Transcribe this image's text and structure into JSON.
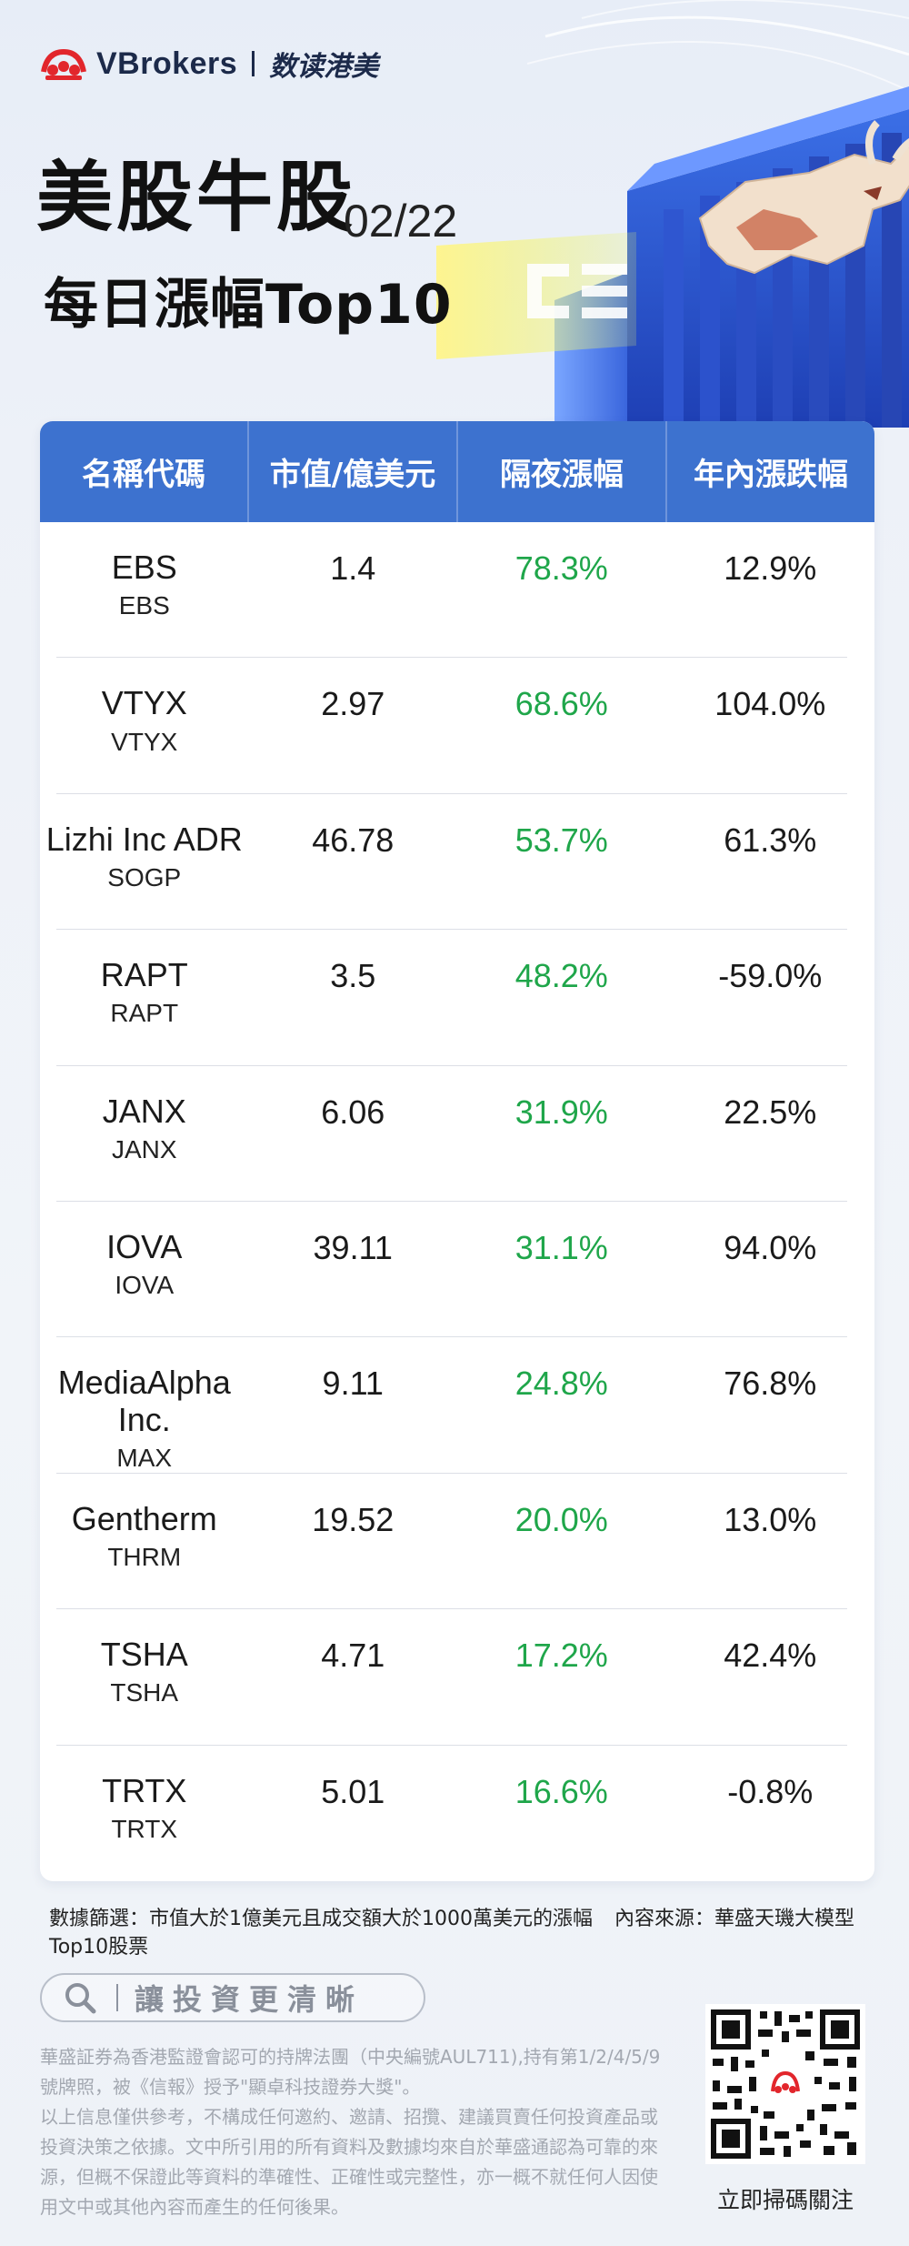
{
  "brand": {
    "name": "VBrokers",
    "subtitle": "数读港美",
    "logo_icon": "vbrokers-logo-icon"
  },
  "header": {
    "title": "美股牛股",
    "date": "02/22",
    "subtitle": "每日漲幅Top10"
  },
  "table": {
    "columns": [
      "名稱代碼",
      "市值/億美元",
      "隔夜漲幅",
      "年內漲跌幅"
    ],
    "rows": [
      {
        "name": "EBS",
        "code": "EBS",
        "market_cap": "1.4",
        "overnight": "78.3%",
        "ytd": "12.9%"
      },
      {
        "name": "VTYX",
        "code": "VTYX",
        "market_cap": "2.97",
        "overnight": "68.6%",
        "ytd": "104.0%"
      },
      {
        "name": "Lizhi Inc ADR",
        "code": "SOGP",
        "market_cap": "46.78",
        "overnight": "53.7%",
        "ytd": "61.3%"
      },
      {
        "name": "RAPT",
        "code": "RAPT",
        "market_cap": "3.5",
        "overnight": "48.2%",
        "ytd": "-59.0%"
      },
      {
        "name": "JANX",
        "code": "JANX",
        "market_cap": "6.06",
        "overnight": "31.9%",
        "ytd": "22.5%"
      },
      {
        "name": "IOVA",
        "code": "IOVA",
        "market_cap": "39.11",
        "overnight": "31.1%",
        "ytd": "94.0%"
      },
      {
        "name": "MediaAlpha Inc.",
        "code": "MAX",
        "market_cap": "9.11",
        "overnight": "24.8%",
        "ytd": "76.8%"
      },
      {
        "name": "Gentherm",
        "code": "THRM",
        "market_cap": "19.52",
        "overnight": "20.0%",
        "ytd": "13.0%"
      },
      {
        "name": "TSHA",
        "code": "TSHA",
        "market_cap": "4.71",
        "overnight": "17.2%",
        "ytd": "42.4%"
      },
      {
        "name": "TRTX",
        "code": "TRTX",
        "market_cap": "5.01",
        "overnight": "16.6%",
        "ytd": "-0.8%"
      }
    ]
  },
  "footer": {
    "filter_note": "數據篩選：市值大於1億美元且成交額大於1000萬美元的漲幅Top10股票",
    "source_note": "內容來源：華盛天璣大模型",
    "search_text": "讓投資更清晰",
    "disclaimer_1": "華盛証券為香港監證會認可的持牌法團（中央編號AUL711),持有第1/2/4/5/9號牌照，被《信報》授予\"顯卓科技證券大獎\"。",
    "disclaimer_2": "以上信息僅供參考，不構成任何邀約、邀請、招攬、建議買賣任何投資產品或投資決策之依據。文中所引用的所有資料及數據均來自於華盛通認為可靠的來源，但概不保證此等資料的準確性、正確性或完整性，亦一概不就任何人因使用文中或其他內容而產生的任何後果。",
    "qr_caption": "立即掃碼關注"
  },
  "colors": {
    "header_blue": "#3d72cf",
    "gain_green": "#1fa64a",
    "brand_red": "#e2262c"
  }
}
